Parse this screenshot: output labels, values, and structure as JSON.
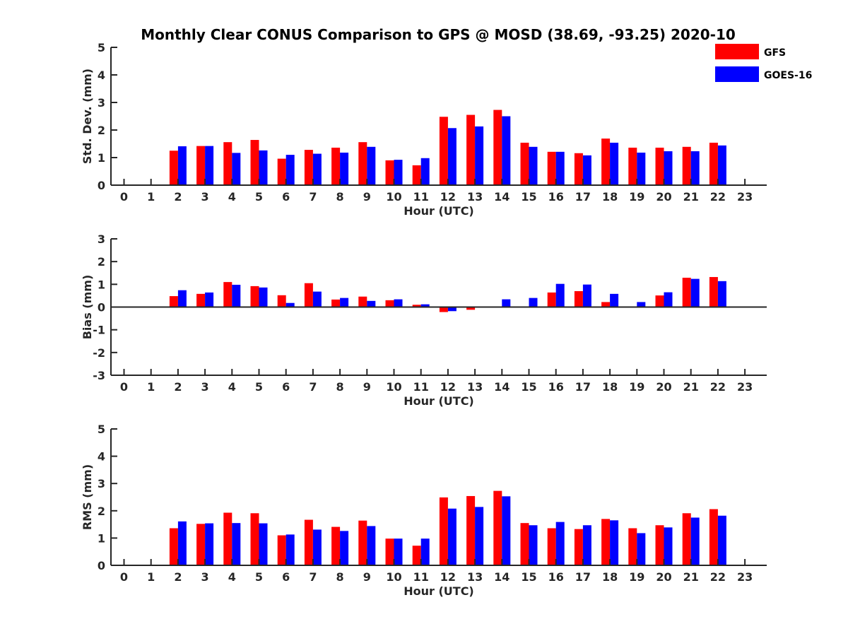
{
  "title": "Monthly Clear CONUS Comparison to GPS @ MOSD (38.69, -93.25) 2020-10",
  "legend": {
    "placement": "top-right",
    "entries": [
      {
        "name": "GFS",
        "color": "#ff0000"
      },
      {
        "name": "GOES-16",
        "color": "#0000ff"
      }
    ]
  },
  "chart_data": [
    {
      "type": "bar",
      "xlabel": "Hour (UTC)",
      "ylabel": "Std. Dev. (mm)",
      "ylim": [
        0,
        5
      ],
      "yticks": [
        "0",
        "1",
        "2",
        "3",
        "4",
        "5"
      ],
      "categories": [
        "0",
        "1",
        "2",
        "3",
        "4",
        "5",
        "6",
        "7",
        "8",
        "9",
        "10",
        "11",
        "12",
        "13",
        "14",
        "15",
        "16",
        "17",
        "18",
        "19",
        "20",
        "21",
        "22",
        "23"
      ],
      "series": [
        {
          "name": "GFS",
          "color": "#ff0000",
          "values": [
            null,
            null,
            1.25,
            1.42,
            1.56,
            1.64,
            0.96,
            1.28,
            1.36,
            1.56,
            0.9,
            0.72,
            2.48,
            2.55,
            2.73,
            1.54,
            1.21,
            1.16,
            1.69,
            1.36,
            1.36,
            1.39,
            1.54,
            null
          ]
        },
        {
          "name": "GOES-16",
          "color": "#0000ff",
          "values": [
            null,
            null,
            1.41,
            1.42,
            1.17,
            1.26,
            1.1,
            1.14,
            1.18,
            1.39,
            0.92,
            0.98,
            2.07,
            2.13,
            2.5,
            1.39,
            1.21,
            1.08,
            1.54,
            1.18,
            1.23,
            1.23,
            1.44,
            null
          ]
        }
      ]
    },
    {
      "type": "bar",
      "xlabel": "Hour (UTC)",
      "ylabel": "Bias (mm)",
      "ylim": [
        -3,
        3
      ],
      "yticks": [
        "-3",
        "-2",
        "-1",
        "0",
        "1",
        "2",
        "3"
      ],
      "categories": [
        "0",
        "1",
        "2",
        "3",
        "4",
        "5",
        "6",
        "7",
        "8",
        "9",
        "10",
        "11",
        "12",
        "13",
        "14",
        "15",
        "16",
        "17",
        "18",
        "19",
        "20",
        "21",
        "22",
        "23"
      ],
      "series": [
        {
          "name": "GFS",
          "color": "#ff0000",
          "values": [
            null,
            null,
            0.48,
            0.58,
            1.1,
            0.92,
            0.52,
            1.05,
            0.33,
            0.46,
            0.3,
            0.1,
            -0.22,
            -0.12,
            0.0,
            0.03,
            0.64,
            0.7,
            0.22,
            0.0,
            0.51,
            1.29,
            1.32,
            null
          ]
        },
        {
          "name": "GOES-16",
          "color": "#0000ff",
          "values": [
            null,
            null,
            0.74,
            0.64,
            0.98,
            0.86,
            0.18,
            0.68,
            0.4,
            0.27,
            0.34,
            0.12,
            -0.18,
            0.0,
            0.34,
            0.4,
            1.02,
            0.99,
            0.58,
            0.22,
            0.65,
            1.24,
            1.14,
            null
          ]
        }
      ]
    },
    {
      "type": "bar",
      "xlabel": "Hour (UTC)",
      "ylabel": "RMS (mm)",
      "ylim": [
        0,
        5
      ],
      "yticks": [
        "0",
        "1",
        "2",
        "3",
        "4",
        "5"
      ],
      "categories": [
        "0",
        "1",
        "2",
        "3",
        "4",
        "5",
        "6",
        "7",
        "8",
        "9",
        "10",
        "11",
        "12",
        "13",
        "14",
        "15",
        "16",
        "17",
        "18",
        "19",
        "20",
        "21",
        "22",
        "23"
      ],
      "series": [
        {
          "name": "GFS",
          "color": "#ff0000",
          "values": [
            null,
            null,
            1.36,
            1.52,
            1.93,
            1.91,
            1.1,
            1.67,
            1.41,
            1.64,
            0.98,
            0.72,
            2.49,
            2.54,
            2.73,
            1.55,
            1.36,
            1.33,
            1.7,
            1.36,
            1.47,
            1.91,
            2.06,
            null
          ]
        },
        {
          "name": "GOES-16",
          "color": "#0000ff",
          "values": [
            null,
            null,
            1.61,
            1.54,
            1.55,
            1.54,
            1.13,
            1.31,
            1.26,
            1.44,
            0.98,
            0.98,
            2.08,
            2.14,
            2.53,
            1.47,
            1.59,
            1.47,
            1.65,
            1.18,
            1.39,
            1.75,
            1.82,
            null
          ]
        }
      ]
    }
  ]
}
